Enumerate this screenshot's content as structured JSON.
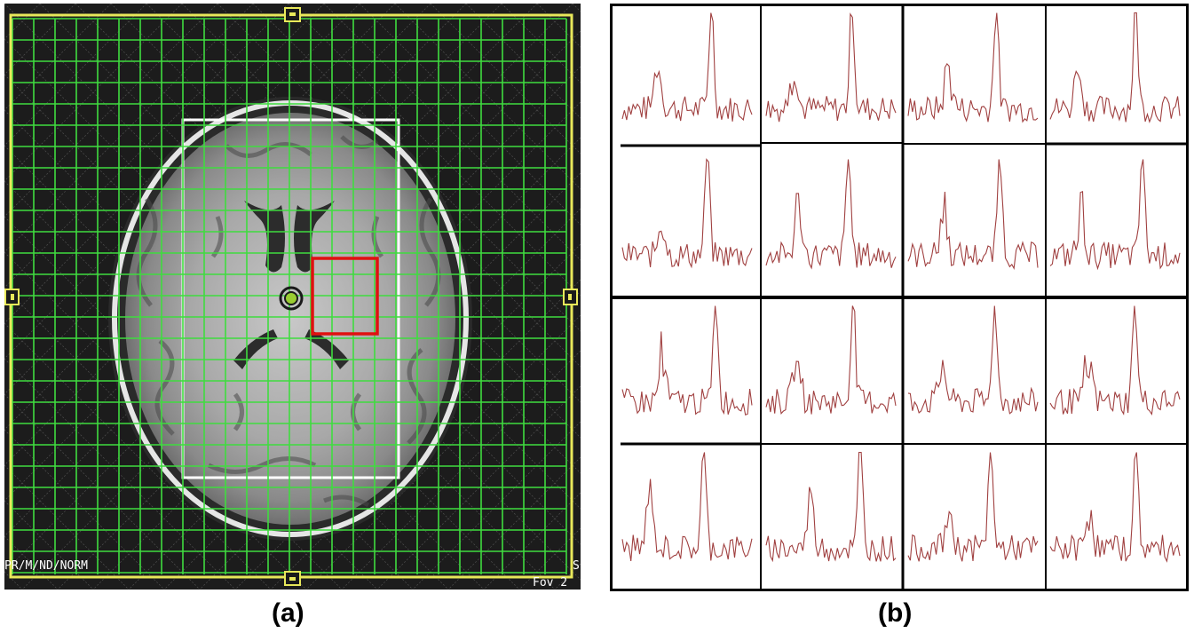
{
  "panels": {
    "a": {
      "caption": "(a)",
      "overlay_text_left": "PR/M/ND/NORM",
      "overlay_text_right_top": "S",
      "overlay_text_right_bottom": "Fov 2",
      "colors": {
        "background": "#1a1a1a",
        "grid": "#3fdc3f",
        "frame": "#e8e85a",
        "selection": "#e01010",
        "roi_box": "#ffffff"
      }
    },
    "b": {
      "caption": "(b)",
      "rows": 4,
      "cols": 4,
      "colors": {
        "line": "#a04040",
        "border": "#000000"
      },
      "spectra_count": 16
    }
  }
}
